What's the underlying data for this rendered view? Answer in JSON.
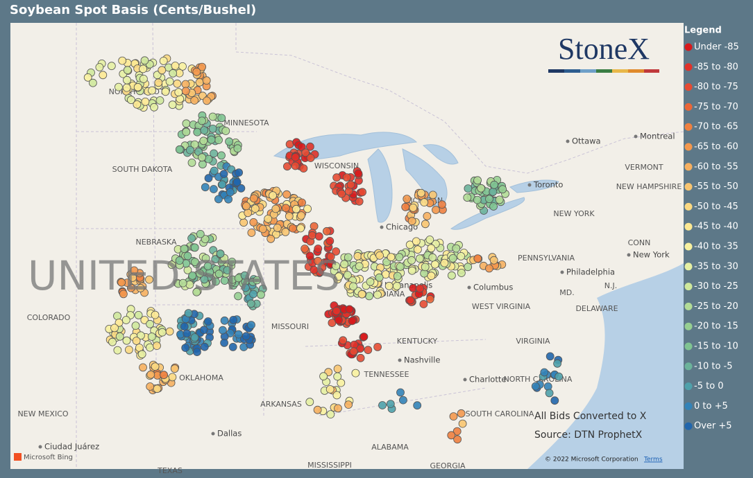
{
  "title": "Soybean Spot Basis (Cents/Bushel)",
  "logo": "StoneX",
  "notes": [
    "All Bids Converted to X",
    "Source: DTN ProphetX"
  ],
  "legend": {
    "title": "Legend",
    "items": [
      {
        "label": "Under -85",
        "color": "#d7191c"
      },
      {
        "label": "-85 to -80",
        "color": "#e0322a"
      },
      {
        "label": "-80 to -75",
        "color": "#e54b33"
      },
      {
        "label": "-75 to -70",
        "color": "#ea6638"
      },
      {
        "label": "-70 to -65",
        "color": "#ee8040"
      },
      {
        "label": "-65 to -60",
        "color": "#f3984e"
      },
      {
        "label": "-60 to -55",
        "color": "#f6b061"
      },
      {
        "label": "-55 to -50",
        "color": "#f8c571"
      },
      {
        "label": "-50 to -45",
        "color": "#fbd982"
      },
      {
        "label": "-45 to -40",
        "color": "#fde993"
      },
      {
        "label": "-40 to -35",
        "color": "#f8f1a0"
      },
      {
        "label": "-35 to -30",
        "color": "#e6f0a3"
      },
      {
        "label": "-30 to -25",
        "color": "#cfe89c"
      },
      {
        "label": "-25 to -20",
        "color": "#b3dc97"
      },
      {
        "label": "-20 to -15",
        "color": "#97cf92"
      },
      {
        "label": "-15 to -10",
        "color": "#80c492"
      },
      {
        "label": "-10 to -5",
        "color": "#6cb39b"
      },
      {
        "label": "-5 to 0",
        "color": "#4fa1ab"
      },
      {
        "label": "0 to +5",
        "color": "#3383b8"
      },
      {
        "label": "Over +5",
        "color": "#2166ac"
      }
    ]
  },
  "map": {
    "country": "UNITED STATES",
    "labels": [
      "NORTH DAKOTA",
      "MINNESOTA",
      "SOUTH DAKOTA",
      "NEBRASKA",
      "COLORADO",
      "NEW MEXICO",
      "OKLAHOMA",
      "ARKANSAS",
      "MISSOURI",
      "TENNESSEE",
      "KENTUCKY",
      "WEST VIRGINIA",
      "VIRGINIA",
      "PENNSYLVANIA",
      "NEW YORK",
      "VERMONT",
      "NEW HAMPSHIRE",
      "MD.",
      "DELAWARE",
      "N.J.",
      "CONN",
      "NORTH CAROLINA",
      "SOUTH CAROLINA",
      "ALABAMA",
      "GEORGIA",
      "MISSISSIPPI",
      "TEXAS",
      "WISCONSIN",
      "MICHIGAN",
      "INDIANA"
    ],
    "cities": [
      "Chicago",
      "Indianapolis",
      "Columbus",
      "Nashville",
      "Charlotte",
      "Philadelphia",
      "New York",
      "Toronto",
      "Ottawa",
      "Montreal",
      "Dallas",
      "Ciudad Juárez"
    ],
    "brand": "Microsoft Bing",
    "attribution": "© 2022 Microsoft Corporation",
    "terms": "Terms"
  }
}
